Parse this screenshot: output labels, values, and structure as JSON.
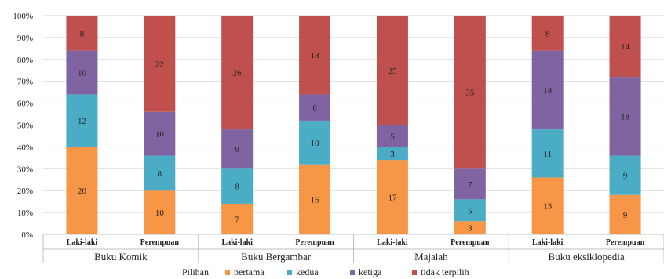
{
  "chart_data": {
    "type": "bar",
    "stacked": "percent",
    "title": "",
    "xlabel": "",
    "ylabel": "",
    "ylim": [
      0,
      100
    ],
    "yticks": [
      "0%",
      "10%",
      "20%",
      "30%",
      "40%",
      "50%",
      "60%",
      "70%",
      "80%",
      "90%",
      "100%"
    ],
    "grid": true,
    "legend_position": "bottom",
    "legend_title": "Pilihan",
    "groups": [
      "Buku Komik",
      "Buku Bergambar",
      "Majalah",
      "Buku eksiklopedia"
    ],
    "categories": [
      "Laki-laki",
      "Perempuan",
      "Laki-laki",
      "Perempuan",
      "Laki-laki",
      "Perempuan",
      "Laki-laki",
      "Perempuan"
    ],
    "series": [
      {
        "name": "pertama",
        "color": "#f79646",
        "values": [
          20,
          10,
          7,
          16,
          17,
          3,
          13,
          9
        ]
      },
      {
        "name": "kedua",
        "color": "#4bacc6",
        "values": [
          12,
          8,
          8,
          10,
          3,
          5,
          11,
          9
        ]
      },
      {
        "name": "ketiga",
        "color": "#8064a2",
        "values": [
          10,
          10,
          9,
          6,
          5,
          7,
          18,
          18
        ]
      },
      {
        "name": "tidak terpilih",
        "color": "#c0504d",
        "values": [
          8,
          22,
          26,
          18,
          25,
          35,
          8,
          14
        ]
      }
    ]
  }
}
